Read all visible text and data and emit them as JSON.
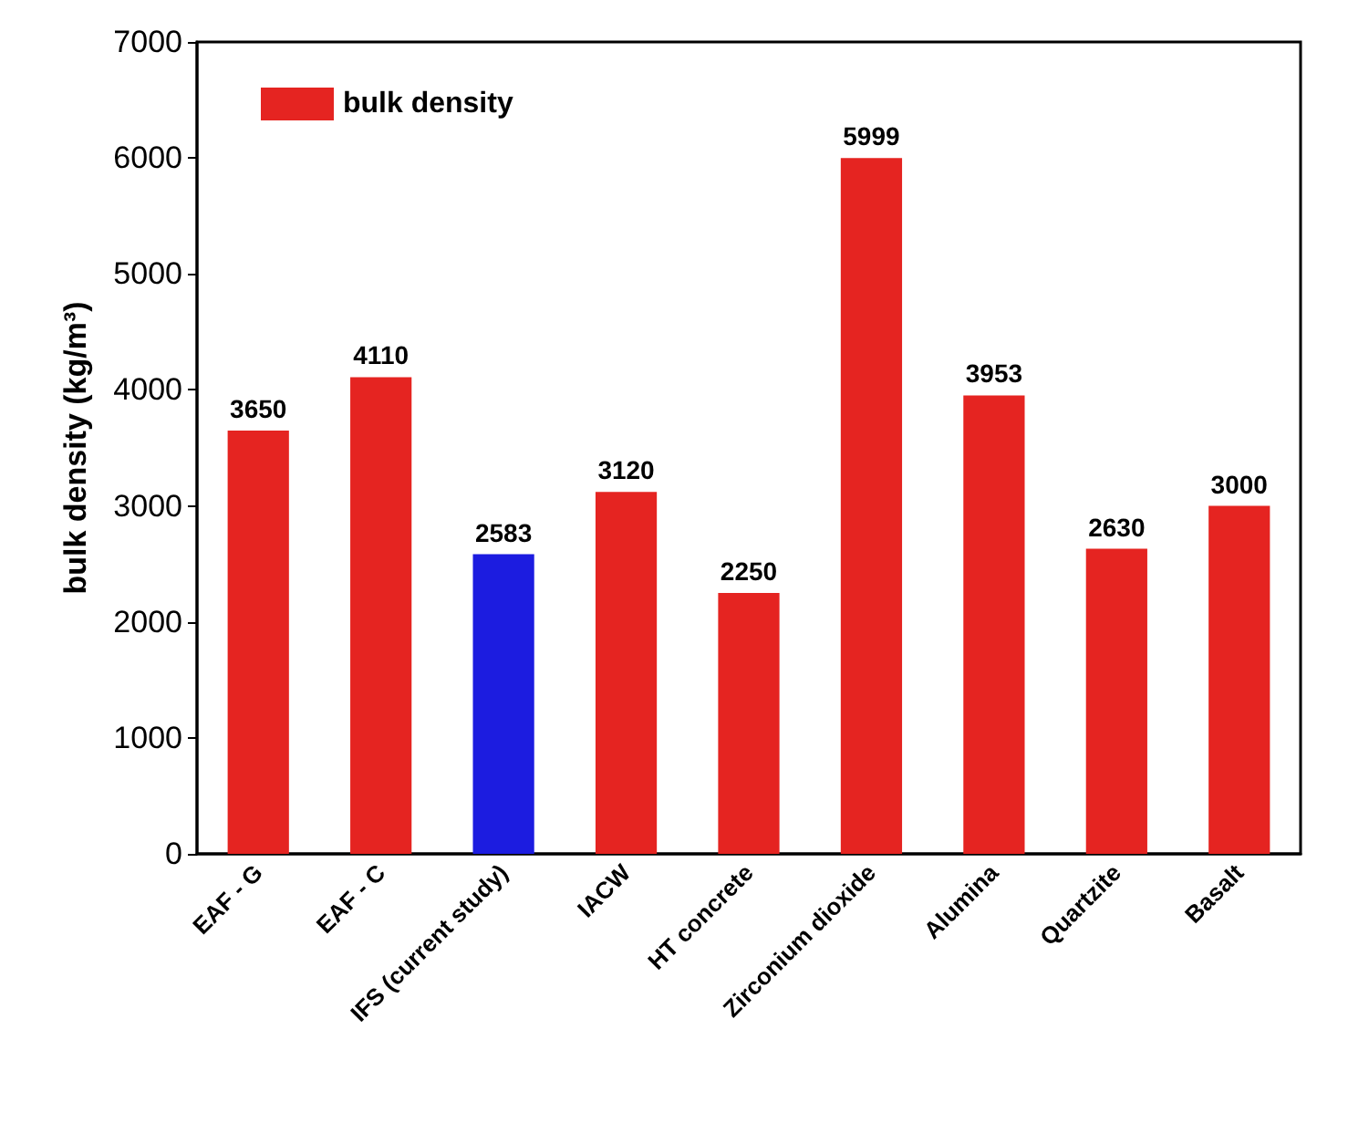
{
  "chart_data": {
    "type": "bar",
    "ylabel": "bulk density (kg/m³)",
    "categories": [
      "EAF - G",
      "EAF - C",
      "IFS (current study)",
      "IACW",
      "HT concrete",
      "Zirconium dioxide",
      "Alumina",
      "Quartzite",
      "Basalt"
    ],
    "series": [
      {
        "name": "bulk density",
        "color": "#e52421",
        "values": [
          3650,
          4110,
          2583,
          3120,
          2250,
          5999,
          3953,
          2630,
          3000
        ],
        "colors": [
          "#e52421",
          "#e52421",
          "#1c1ce0",
          "#e52421",
          "#e52421",
          "#e52421",
          "#e52421",
          "#e52421",
          "#e52421"
        ]
      }
    ],
    "ylim": [
      0,
      7000
    ],
    "yticks": [
      0,
      1000,
      2000,
      3000,
      4000,
      5000,
      6000,
      7000
    ],
    "data_labels": true,
    "legend": "top left",
    "grid": false
  }
}
